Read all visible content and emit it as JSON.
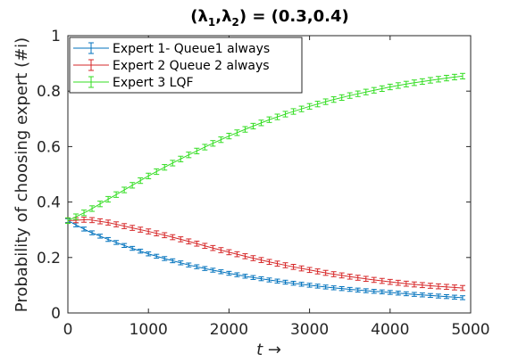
{
  "chart_data": {
    "type": "line",
    "title": "(λ1,λ2) = (0.3,0.4)",
    "title_parts": {
      "open": "(",
      "sym1": "λ",
      "sub1": "1",
      "comma": ",",
      "sym2": "λ",
      "sub2": "2",
      "rest": ") = (0.3,0.4)"
    },
    "xlabel": "t →",
    "ylabel": "Probability of choosing expert (#i)",
    "xlim": [
      0,
      5000
    ],
    "ylim": [
      0,
      1
    ],
    "xticks": [
      0,
      1000,
      2000,
      3000,
      4000,
      5000
    ],
    "yticks": [
      0,
      0.2,
      0.4,
      0.6,
      0.8,
      1
    ],
    "ytick_labels": [
      "0",
      "0.2",
      "0.4",
      "0.6",
      "0.8",
      "1"
    ],
    "grid": false,
    "legend_position": "top-left",
    "x": [
      0,
      250,
      500,
      750,
      1000,
      1250,
      1500,
      1750,
      2000,
      2250,
      2500,
      2750,
      3000,
      3250,
      3500,
      3750,
      4000,
      4250,
      4500,
      4750,
      4900
    ],
    "series": [
      {
        "name": "Expert 1- Queue1 always",
        "color": "#0072BD",
        "values": [
          0.333,
          0.295,
          0.265,
          0.238,
          0.213,
          0.192,
          0.173,
          0.157,
          0.143,
          0.13,
          0.119,
          0.109,
          0.1,
          0.092,
          0.085,
          0.079,
          0.074,
          0.068,
          0.063,
          0.058,
          0.055
        ],
        "error": 0.007
      },
      {
        "name": "Expert 2 Queue 2 always",
        "color": "#D62728",
        "values": [
          0.333,
          0.337,
          0.326,
          0.31,
          0.294,
          0.277,
          0.258,
          0.238,
          0.219,
          0.201,
          0.184,
          0.169,
          0.155,
          0.142,
          0.131,
          0.121,
          0.112,
          0.104,
          0.098,
          0.093,
          0.09
        ],
        "error": 0.009
      },
      {
        "name": "Expert 3 LQF",
        "color": "#33DD22",
        "values": [
          0.333,
          0.368,
          0.41,
          0.452,
          0.494,
          0.533,
          0.57,
          0.605,
          0.638,
          0.668,
          0.697,
          0.722,
          0.745,
          0.766,
          0.784,
          0.8,
          0.815,
          0.828,
          0.839,
          0.849,
          0.854
        ],
        "error": 0.01
      }
    ]
  }
}
